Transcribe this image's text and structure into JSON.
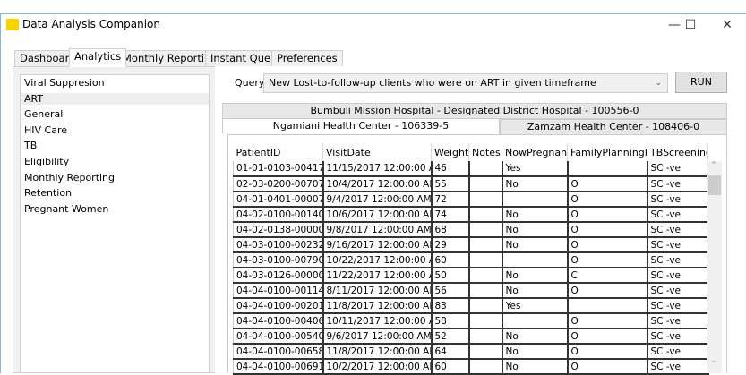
{
  "window": {
    "title": "Data Analysis Companion",
    "logo_text": "DAC",
    "minimize": "—",
    "maximize": "☐",
    "close": "✕"
  },
  "main_tabs": [
    {
      "label": "Dashboard"
    },
    {
      "label": "Analytics",
      "active": true
    },
    {
      "label": "Monthly Reporting"
    },
    {
      "label": "Instant Query"
    },
    {
      "label": "Preferences"
    }
  ],
  "sidebar": {
    "items": [
      {
        "label": "Viral Suppresion"
      },
      {
        "label": "ART",
        "selected": true
      },
      {
        "label": "General"
      },
      {
        "label": "HIV Care"
      },
      {
        "label": "TB"
      },
      {
        "label": "Eligibility"
      },
      {
        "label": "Monthly Reporting"
      },
      {
        "label": "Retention"
      },
      {
        "label": "Pregnant Women"
      }
    ]
  },
  "query": {
    "label": "Query",
    "selected": "New Lost-to-follow-up clients who were on ART in given timeframe",
    "run_label": "RUN"
  },
  "facility_tabs": {
    "back": "Bumbuli Mission Hospital - Designated District Hospital - 100556-0",
    "active": "Ngamiani Health Center - 106339-5",
    "other": "Zamzam Health Center - 108406-0"
  },
  "table": {
    "columns": [
      "PatientID",
      "VisitDate",
      "Weight",
      "Notes",
      "NowPregnant",
      "FamilyPlanningID",
      "TBScreeningI"
    ],
    "rows": [
      [
        "01-01-0103-004178",
        "11/15/2017 12:00:00 AM",
        "46",
        "",
        "Yes",
        "",
        "SC -ve"
      ],
      [
        "02-03-0200-007075",
        "10/4/2017 12:00:00 AM",
        "55",
        "",
        "No",
        "O",
        "SC -ve"
      ],
      [
        "04-01-0401-000070",
        "9/4/2017 12:00:00 AM",
        "72",
        "",
        "",
        "O",
        "SC -ve"
      ],
      [
        "04-02-0100-001408",
        "10/6/2017 12:00:00 AM",
        "74",
        "",
        "No",
        "O",
        "SC -ve"
      ],
      [
        "04-02-0138-000002",
        "9/8/2017 12:00:00 AM",
        "68",
        "",
        "No",
        "O",
        "SC -ve"
      ],
      [
        "04-03-0100-002323",
        "9/16/2017 12:00:00 AM",
        "29",
        "",
        "No",
        "O",
        "SC -ve"
      ],
      [
        "04-03-0100-007904",
        "10/22/2017 12:00:00 AM",
        "60",
        "",
        "",
        "O",
        "SC -ve"
      ],
      [
        "04-03-0126-000001",
        "11/22/2017 12:00:00 AM",
        "50",
        "",
        "No",
        "C",
        "SC -ve"
      ],
      [
        "04-04-0100-001148",
        "8/11/2017 12:00:00 AM",
        "56",
        "",
        "No",
        "O",
        "SC -ve"
      ],
      [
        "04-04-0100-002010",
        "11/8/2017 12:00:00 AM",
        "83",
        "",
        "Yes",
        "",
        "SC -ve"
      ],
      [
        "04-04-0100-004068",
        "10/11/2017 12:00:00 AM",
        "58",
        "",
        "",
        "O",
        "SC -ve"
      ],
      [
        "04-04-0100-005408",
        "9/6/2017 12:00:00 AM",
        "52",
        "",
        "No",
        "O",
        "SC -ve"
      ],
      [
        "04-04-0100-006580",
        "11/8/2017 12:00:00 AM",
        "64",
        "",
        "No",
        "O",
        "SC -ve"
      ],
      [
        "04-04-0100-006913",
        "10/2/2017 12:00:00 AM",
        "60",
        "",
        "No",
        "O",
        "SC -ve"
      ]
    ]
  },
  "scroll": {
    "up": "⌃",
    "down": "⌄"
  }
}
